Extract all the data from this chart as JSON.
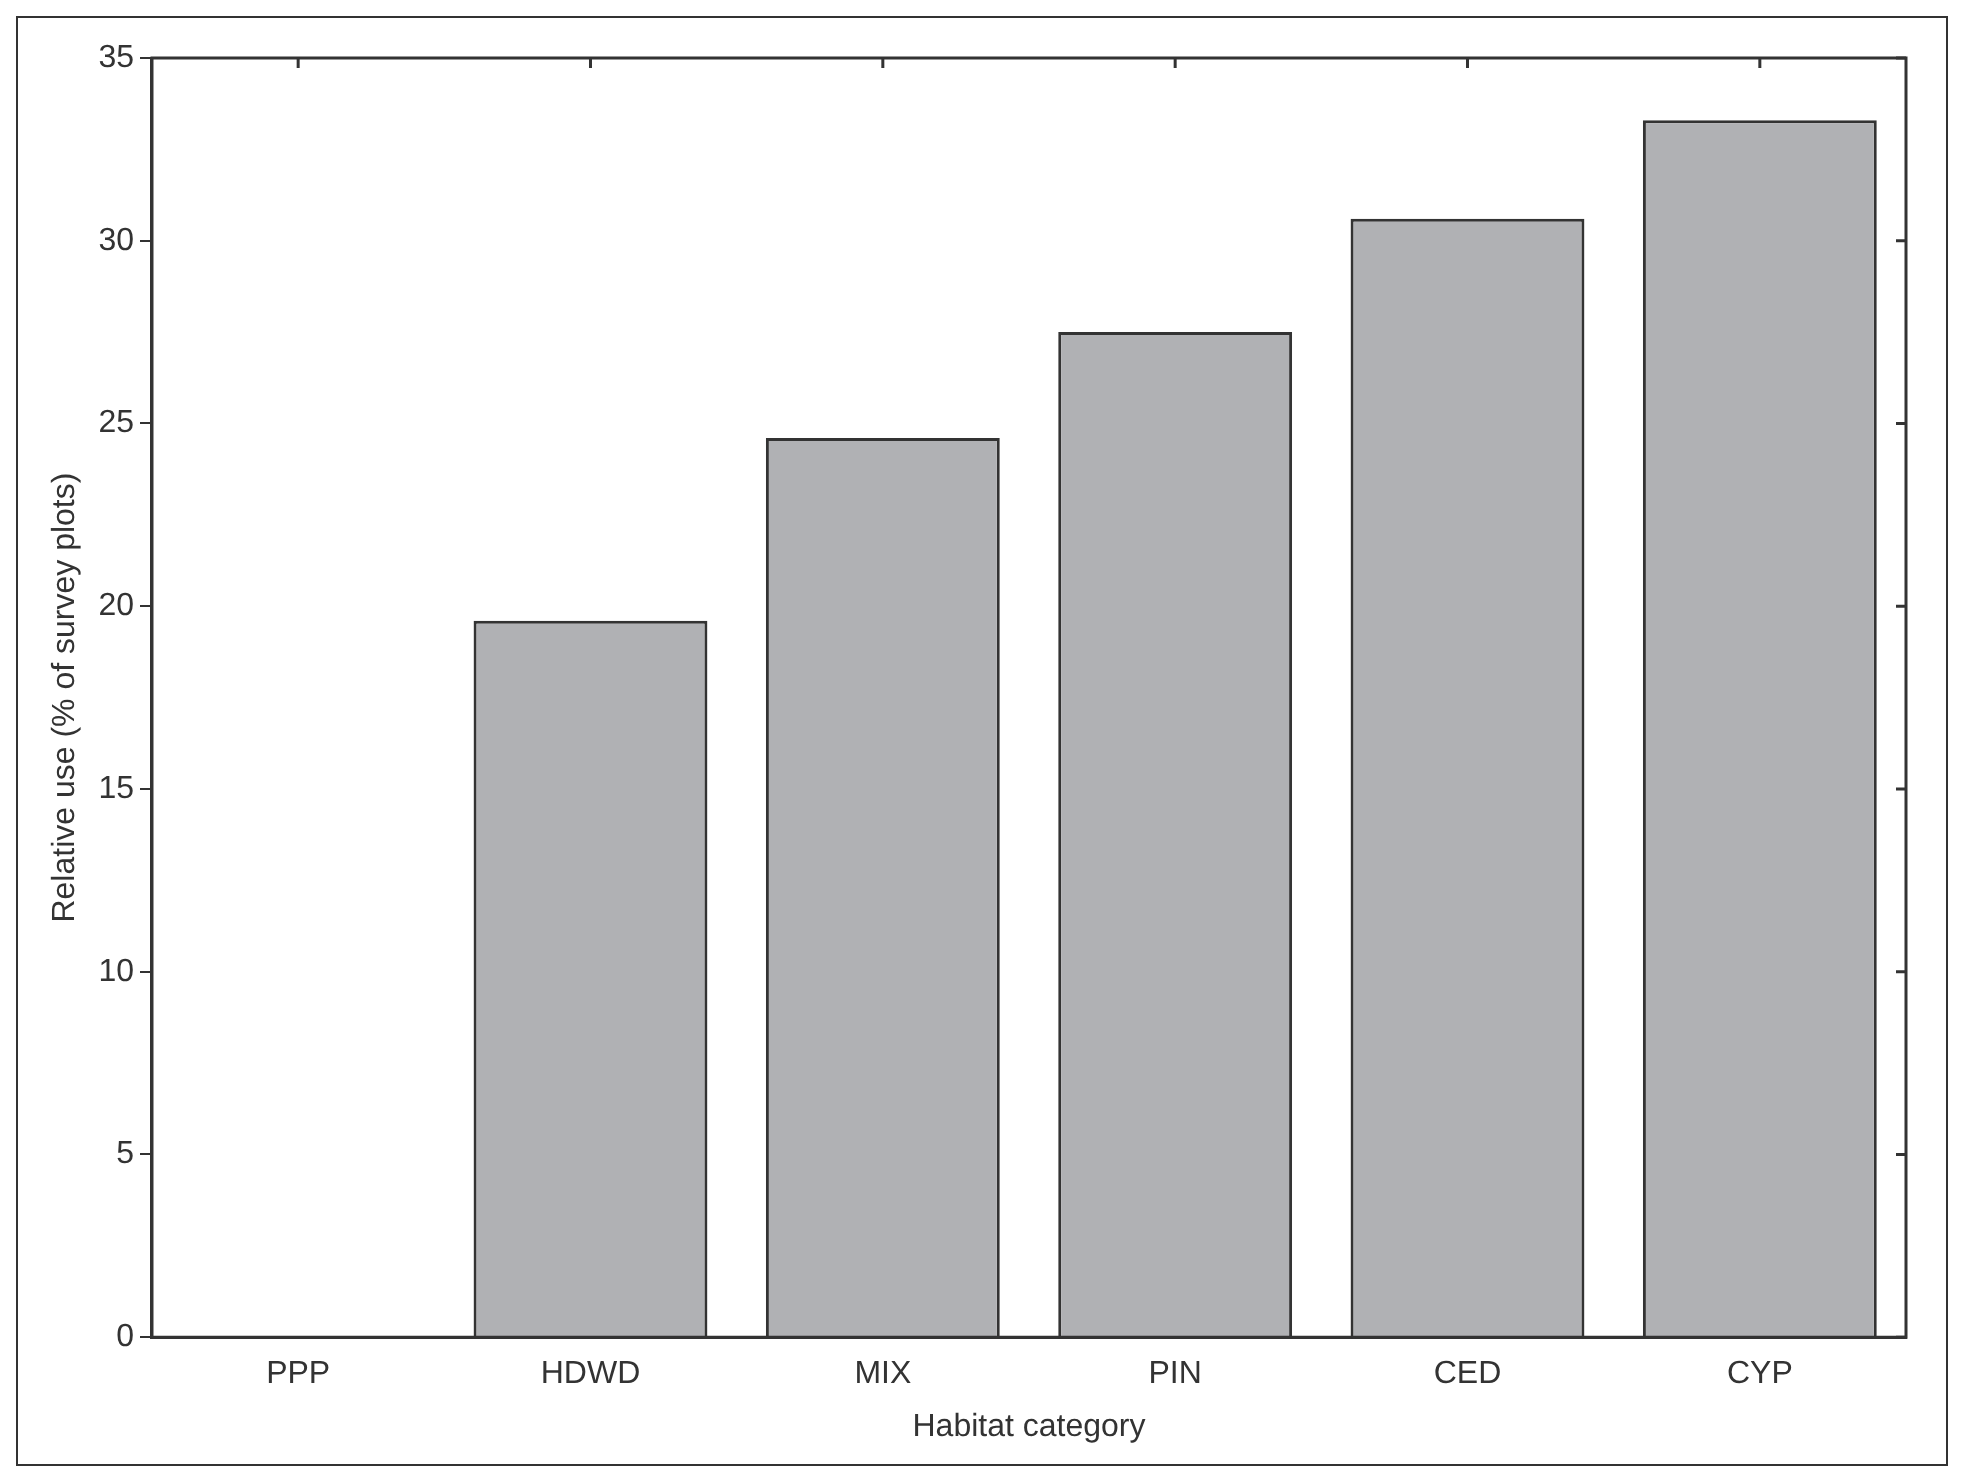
{
  "chart_data": {
    "type": "bar",
    "xlabel": "Habitat category",
    "ylabel": "Relative use (% of survey plots)",
    "categories": [
      "PPP",
      "HDWD",
      "MIX",
      "PIN",
      "CED",
      "CYP"
    ],
    "values": [
      0,
      19.6,
      24.6,
      27.5,
      30.6,
      33.3
    ],
    "color": "#b0b1b4",
    "ylim": [
      0,
      35
    ],
    "yticks": [
      0,
      5,
      10,
      15,
      20,
      25,
      30,
      35
    ],
    "grid": false,
    "legend": false
  }
}
